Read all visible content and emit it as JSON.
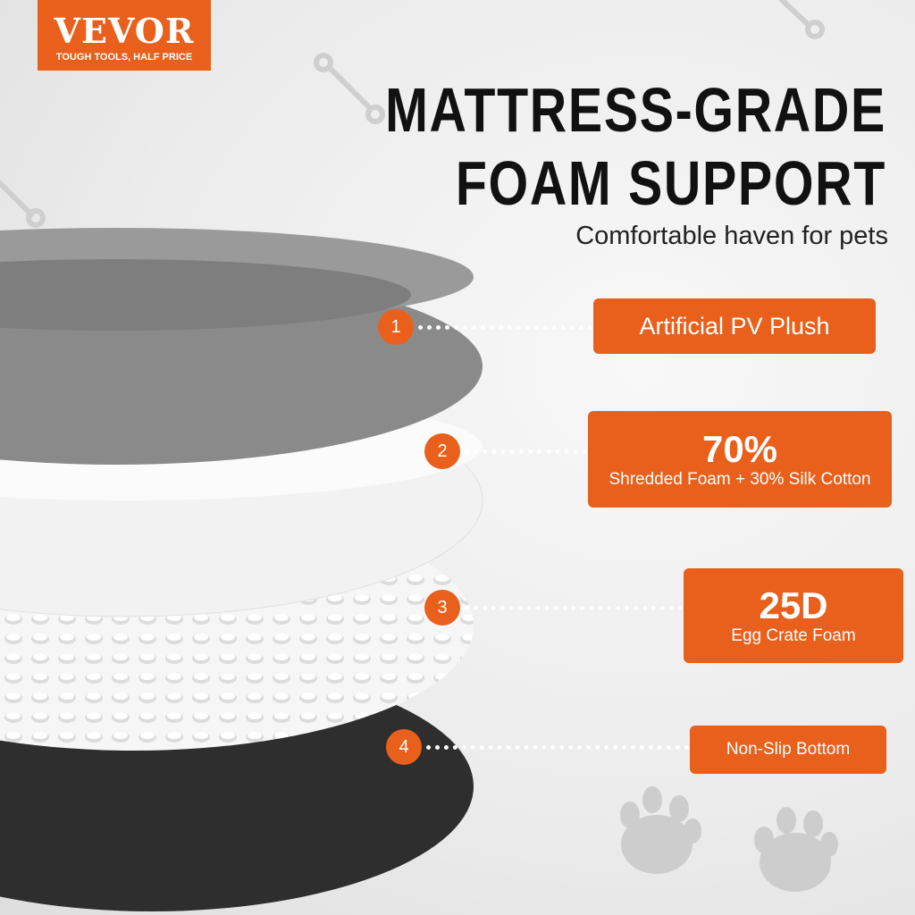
{
  "logo": {
    "brand": "VEVOR",
    "tagline": "TOUGH TOOLS, HALF PRICE"
  },
  "headline": {
    "line1": "MATTRESS-GRADE",
    "line2": "FOAM SUPPORT"
  },
  "subtitle": "Comfortable haven for pets",
  "colors": {
    "accent": "#e8601c",
    "plush": "#8a8a8a",
    "foam": "#f4f4f4",
    "bottom": "#2e2e2e"
  },
  "layers": [
    {
      "number": "1",
      "label": "Artificial PV Plush"
    },
    {
      "number": "2",
      "headline": "70%",
      "label": "Shredded Foam + 30% Silk Cotton"
    },
    {
      "number": "3",
      "headline": "25D",
      "label": "Egg Crate Foam"
    },
    {
      "number": "4",
      "label": "Non-Slip Bottom"
    }
  ],
  "decorations": [
    "bone-icon",
    "bone-icon",
    "bone-icon",
    "paw-icon",
    "paw-icon"
  ]
}
